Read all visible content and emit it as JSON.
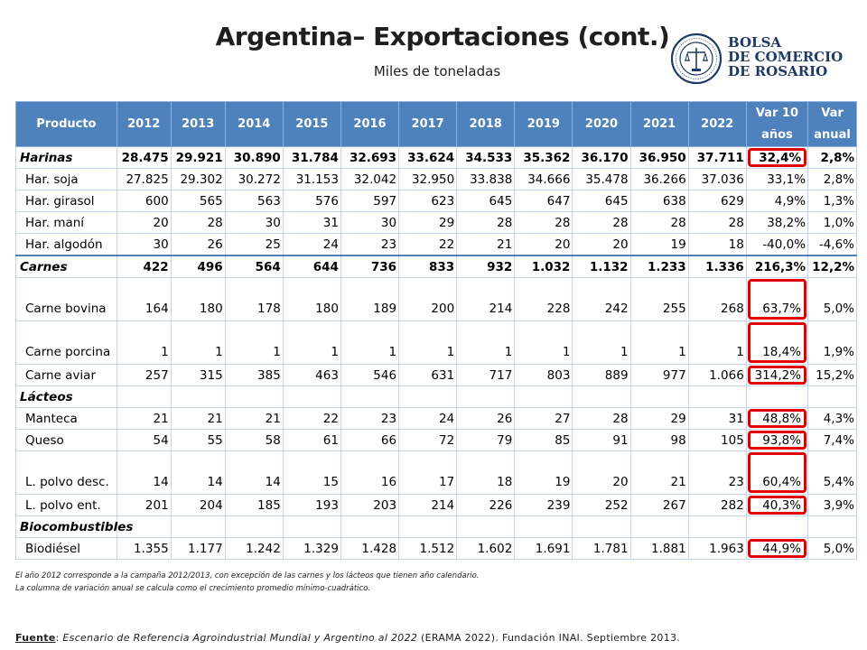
{
  "header": {
    "title": "Argentina– Exportaciones (cont.)",
    "subtitle": "Miles de toneladas"
  },
  "logo": {
    "line1": "BOLSA",
    "line2": "DE COMERCIO",
    "line3": "DE ROSARIO",
    "seal_text": "BOLSA DE COMERCIO DE ROSARIO",
    "color": "#1e3a66"
  },
  "colors": {
    "header_bg": "#4f81bd",
    "highlight": "#e00000"
  },
  "table": {
    "columns": [
      "Producto",
      "2012",
      "2013",
      "2014",
      "2015",
      "2016",
      "2017",
      "2018",
      "2019",
      "2020",
      "2021",
      "2022",
      "Var 10 años",
      "Var anual"
    ],
    "rows": [
      {
        "cells": [
          "Harinas",
          "28.475",
          "29.921",
          "30.890",
          "31.784",
          "32.693",
          "33.624",
          "34.533",
          "35.362",
          "36.170",
          "36.950",
          "37.711",
          "32,4%",
          "2,8%"
        ],
        "style": "bold",
        "highlight": true
      },
      {
        "cells": [
          "Har. soja",
          "27.825",
          "29.302",
          "30.272",
          "31.153",
          "32.042",
          "32.950",
          "33.838",
          "34.666",
          "35.478",
          "36.266",
          "37.036",
          "33,1%",
          "2,8%"
        ],
        "style": "sub",
        "highlight": false
      },
      {
        "cells": [
          "Har. girasol",
          "600",
          "565",
          "563",
          "576",
          "597",
          "623",
          "645",
          "647",
          "645",
          "638",
          "629",
          "4,9%",
          "1,3%"
        ],
        "style": "sub",
        "highlight": false
      },
      {
        "cells": [
          "Har. maní",
          "20",
          "28",
          "30",
          "31",
          "30",
          "29",
          "28",
          "28",
          "28",
          "28",
          "28",
          "38,2%",
          "1,0%"
        ],
        "style": "sub",
        "highlight": false
      },
      {
        "cells": [
          "Har. algodón",
          "30",
          "26",
          "25",
          "24",
          "23",
          "22",
          "21",
          "20",
          "20",
          "19",
          "18",
          "-40,0%",
          "-4,6%"
        ],
        "style": "sub sep",
        "highlight": false
      },
      {
        "cells": [
          "Carnes",
          "422",
          "496",
          "564",
          "644",
          "736",
          "833",
          "932",
          "1.032",
          "1.132",
          "1.233",
          "1.336",
          "216,3%",
          "12,2%"
        ],
        "style": "bold",
        "highlight": false
      },
      {
        "cells": [
          "Carne bovina",
          "164",
          "180",
          "178",
          "180",
          "189",
          "200",
          "214",
          "228",
          "242",
          "255",
          "268",
          "63,7%",
          "5,0%"
        ],
        "style": "sub tall",
        "highlight": true
      },
      {
        "cells": [
          "Carne porcina",
          "1",
          "1",
          "1",
          "1",
          "1",
          "1",
          "1",
          "1",
          "1",
          "1",
          "1",
          "18,4%",
          "1,9%"
        ],
        "style": "sub tall",
        "highlight": true
      },
      {
        "cells": [
          "Carne aviar",
          "257",
          "315",
          "385",
          "463",
          "546",
          "631",
          "717",
          "803",
          "889",
          "977",
          "1.066",
          "314,2%",
          "15,2%"
        ],
        "style": "sub",
        "highlight": true
      },
      {
        "cells": [
          "Lácteos",
          "",
          "",
          "",
          "",
          "",
          "",
          "",
          "",
          "",
          "",
          "",
          "",
          ""
        ],
        "style": "cat",
        "highlight": false
      },
      {
        "cells": [
          "Manteca",
          "21",
          "21",
          "21",
          "22",
          "23",
          "24",
          "26",
          "27",
          "28",
          "29",
          "31",
          "48,8%",
          "4,3%"
        ],
        "style": "sub",
        "highlight": true
      },
      {
        "cells": [
          "Queso",
          "54",
          "55",
          "58",
          "61",
          "66",
          "72",
          "79",
          "85",
          "91",
          "98",
          "105",
          "93,8%",
          "7,4%"
        ],
        "style": "sub",
        "highlight": true
      },
      {
        "cells": [
          "L.  polvo desc.",
          "14",
          "14",
          "14",
          "15",
          "16",
          "17",
          "18",
          "19",
          "20",
          "21",
          "23",
          "60,4%",
          "5,4%"
        ],
        "style": "sub tall",
        "highlight": true
      },
      {
        "cells": [
          "L. polvo ent.",
          "201",
          "204",
          "185",
          "193",
          "203",
          "214",
          "226",
          "239",
          "252",
          "267",
          "282",
          "40,3%",
          "3,9%"
        ],
        "style": "sub",
        "highlight": true
      },
      {
        "cells": [
          "Biocombustibles",
          "",
          "",
          "",
          "",
          "",
          "",
          "",
          "",
          "",
          "",
          "",
          "",
          ""
        ],
        "style": "cat",
        "highlight": false
      },
      {
        "cells": [
          "Biodiésel",
          "1.355",
          "1.177",
          "1.242",
          "1.329",
          "1.428",
          "1.512",
          "1.602",
          "1.691",
          "1.781",
          "1.881",
          "1.963",
          "44,9%",
          "5,0%"
        ],
        "style": "sub",
        "highlight": true
      }
    ]
  },
  "notes": {
    "line1": "El año 2012 corresponde a la campaña 2012/2013, con excepción de las carnes y los lácteos que tienen año calendario.",
    "line2": "La columna de variación anual se calcula como el crecimiento promedio mínimo-cuadrático."
  },
  "source": {
    "label": "Fuente",
    "separator": ": ",
    "italic_part": "Escenario de Referencia Agroindustrial Mundial y Argentino al 2022",
    "rest": " (ERAMA 2022). Fundación INAI. Septiembre 2013."
  }
}
